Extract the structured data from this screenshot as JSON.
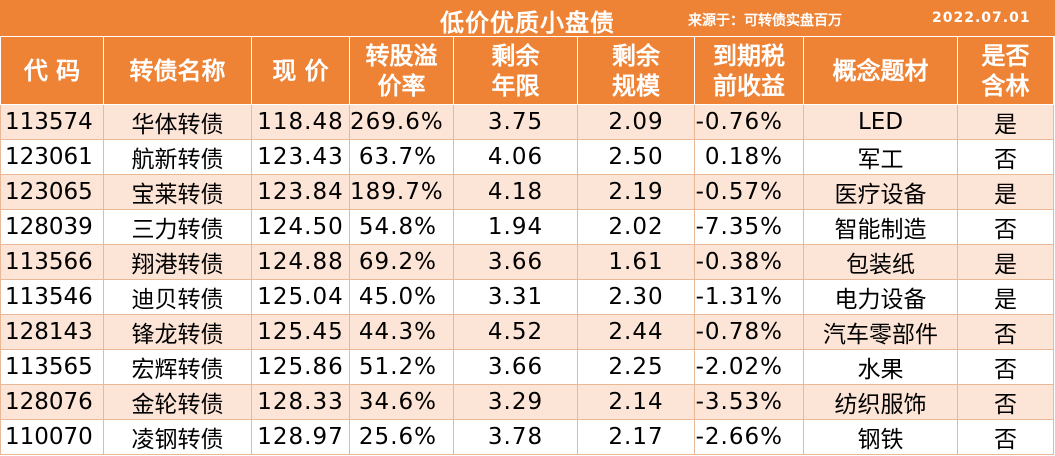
{
  "title": "低价优质小盘债",
  "source": "来源于：可转债实盘百万",
  "date": "2022.07.01",
  "colors": {
    "header_bg": "#ee8235",
    "row_odd_bg": "#fce4d6",
    "row_even_bg": "#ffffff",
    "header_text": "#ffffff"
  },
  "columns": [
    {
      "line1": "代 码",
      "line2": ""
    },
    {
      "line1": "转债名称",
      "line2": ""
    },
    {
      "line1": "现 价",
      "line2": ""
    },
    {
      "line1": "转股溢",
      "line2": "价率"
    },
    {
      "line1": "剩余",
      "line2": "年限"
    },
    {
      "line1": "剩余",
      "line2": "规模"
    },
    {
      "line1": "到期税",
      "line2": "前收益"
    },
    {
      "line1": "概念题材",
      "line2": ""
    },
    {
      "line1": "是否",
      "line2": "含林"
    }
  ],
  "rows": [
    {
      "code": "113574",
      "name": "华体转债",
      "price": "118.48",
      "premium": "269.6%",
      "years": "3.75",
      "scale": "2.09",
      "yield": "-0.76%",
      "concept": "LED",
      "lin": "是"
    },
    {
      "code": "123061",
      "name": "航新转债",
      "price": "123.43",
      "premium": "63.7%",
      "years": "4.06",
      "scale": "2.50",
      "yield": "0.18%",
      "concept": "军工",
      "lin": "否"
    },
    {
      "code": "123065",
      "name": "宝莱转债",
      "price": "123.84",
      "premium": "189.7%",
      "years": "4.18",
      "scale": "2.19",
      "yield": "-0.57%",
      "concept": "医疗设备",
      "lin": "是"
    },
    {
      "code": "128039",
      "name": "三力转债",
      "price": "124.50",
      "premium": "54.8%",
      "years": "1.94",
      "scale": "2.02",
      "yield": "-7.35%",
      "concept": "智能制造",
      "lin": "否"
    },
    {
      "code": "113566",
      "name": "翔港转债",
      "price": "124.88",
      "premium": "69.2%",
      "years": "3.66",
      "scale": "1.61",
      "yield": "-0.38%",
      "concept": "包装纸",
      "lin": "是"
    },
    {
      "code": "113546",
      "name": "迪贝转债",
      "price": "125.04",
      "premium": "45.0%",
      "years": "3.31",
      "scale": "2.30",
      "yield": "-1.31%",
      "concept": "电力设备",
      "lin": "是"
    },
    {
      "code": "128143",
      "name": "锋龙转债",
      "price": "125.45",
      "premium": "44.3%",
      "years": "4.52",
      "scale": "2.44",
      "yield": "-0.78%",
      "concept": "汽车零部件",
      "lin": "否"
    },
    {
      "code": "113565",
      "name": "宏辉转债",
      "price": "125.86",
      "premium": "51.2%",
      "years": "3.66",
      "scale": "2.25",
      "yield": "-2.02%",
      "concept": "水果",
      "lin": "否"
    },
    {
      "code": "128076",
      "name": "金轮转债",
      "price": "128.33",
      "premium": "34.6%",
      "years": "3.29",
      "scale": "2.14",
      "yield": "-3.53%",
      "concept": "纺织服饰",
      "lin": "否"
    },
    {
      "code": "110070",
      "name": "凌钢转债",
      "price": "128.97",
      "premium": "25.6%",
      "years": "3.78",
      "scale": "2.17",
      "yield": "-2.66%",
      "concept": "钢铁",
      "lin": "否"
    }
  ]
}
